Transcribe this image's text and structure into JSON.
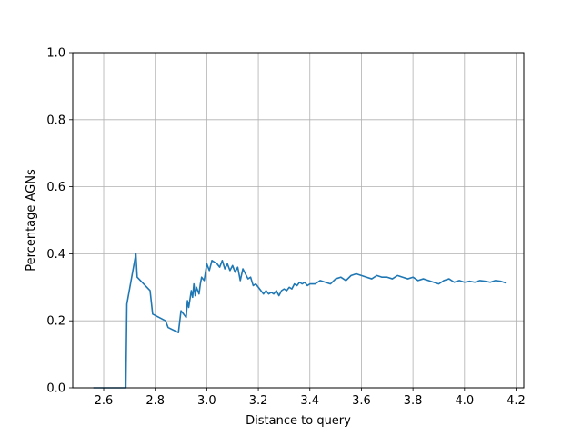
{
  "chart_data": {
    "type": "line",
    "title": "",
    "xlabel": "Distance to query",
    "ylabel": "Percentage AGNs",
    "xlim": [
      2.48,
      4.23
    ],
    "ylim": [
      0.0,
      1.0
    ],
    "xticks": [
      "2.6",
      "2.8",
      "3.0",
      "3.2",
      "3.4",
      "3.6",
      "3.8",
      "4.0",
      "4.2"
    ],
    "yticks": [
      "0.0",
      "0.2",
      "0.4",
      "0.6",
      "0.8",
      "1.0"
    ],
    "grid": true,
    "legend": "none",
    "colors": {
      "line": "#1f77b4",
      "grid": "#b0b0b0",
      "axes": "#000000"
    },
    "series": [
      {
        "x": [
          2.56,
          2.6,
          2.64,
          2.686,
          2.69,
          2.725,
          2.73,
          2.78,
          2.79,
          2.84,
          2.85,
          2.89,
          2.9,
          2.92,
          2.925,
          2.93,
          2.94,
          2.945,
          2.95,
          2.955,
          2.96,
          2.97,
          2.975,
          2.98,
          2.99,
          3.0,
          3.01,
          3.02,
          3.03,
          3.04,
          3.05,
          3.06,
          3.07,
          3.08,
          3.09,
          3.1,
          3.11,
          3.12,
          3.13,
          3.14,
          3.15,
          3.16,
          3.17,
          3.18,
          3.19,
          3.2,
          3.21,
          3.22,
          3.23,
          3.24,
          3.25,
          3.26,
          3.27,
          3.28,
          3.29,
          3.3,
          3.31,
          3.32,
          3.33,
          3.34,
          3.35,
          3.36,
          3.37,
          3.38,
          3.39,
          3.4,
          3.42,
          3.44,
          3.46,
          3.48,
          3.5,
          3.52,
          3.54,
          3.56,
          3.58,
          3.6,
          3.62,
          3.64,
          3.66,
          3.68,
          3.7,
          3.72,
          3.74,
          3.76,
          3.78,
          3.8,
          3.82,
          3.84,
          3.86,
          3.88,
          3.9,
          3.92,
          3.94,
          3.96,
          3.98,
          4.0,
          4.02,
          4.04,
          4.06,
          4.08,
          4.1,
          4.12,
          4.14,
          4.16
        ],
        "y": [
          0.0,
          0.0,
          0.0,
          0.0,
          0.25,
          0.4,
          0.33,
          0.29,
          0.22,
          0.2,
          0.18,
          0.165,
          0.23,
          0.21,
          0.26,
          0.24,
          0.29,
          0.27,
          0.31,
          0.275,
          0.3,
          0.28,
          0.31,
          0.33,
          0.32,
          0.37,
          0.35,
          0.38,
          0.375,
          0.37,
          0.36,
          0.38,
          0.355,
          0.37,
          0.35,
          0.365,
          0.345,
          0.36,
          0.32,
          0.355,
          0.34,
          0.325,
          0.33,
          0.305,
          0.31,
          0.3,
          0.29,
          0.28,
          0.29,
          0.28,
          0.285,
          0.28,
          0.29,
          0.275,
          0.29,
          0.295,
          0.29,
          0.3,
          0.295,
          0.31,
          0.305,
          0.315,
          0.31,
          0.315,
          0.305,
          0.31,
          0.31,
          0.32,
          0.315,
          0.31,
          0.325,
          0.33,
          0.32,
          0.335,
          0.34,
          0.335,
          0.33,
          0.325,
          0.335,
          0.33,
          0.33,
          0.325,
          0.335,
          0.33,
          0.325,
          0.33,
          0.32,
          0.325,
          0.32,
          0.315,
          0.31,
          0.32,
          0.325,
          0.315,
          0.32,
          0.315,
          0.318,
          0.315,
          0.32,
          0.318,
          0.315,
          0.32,
          0.318,
          0.313
        ]
      }
    ]
  }
}
